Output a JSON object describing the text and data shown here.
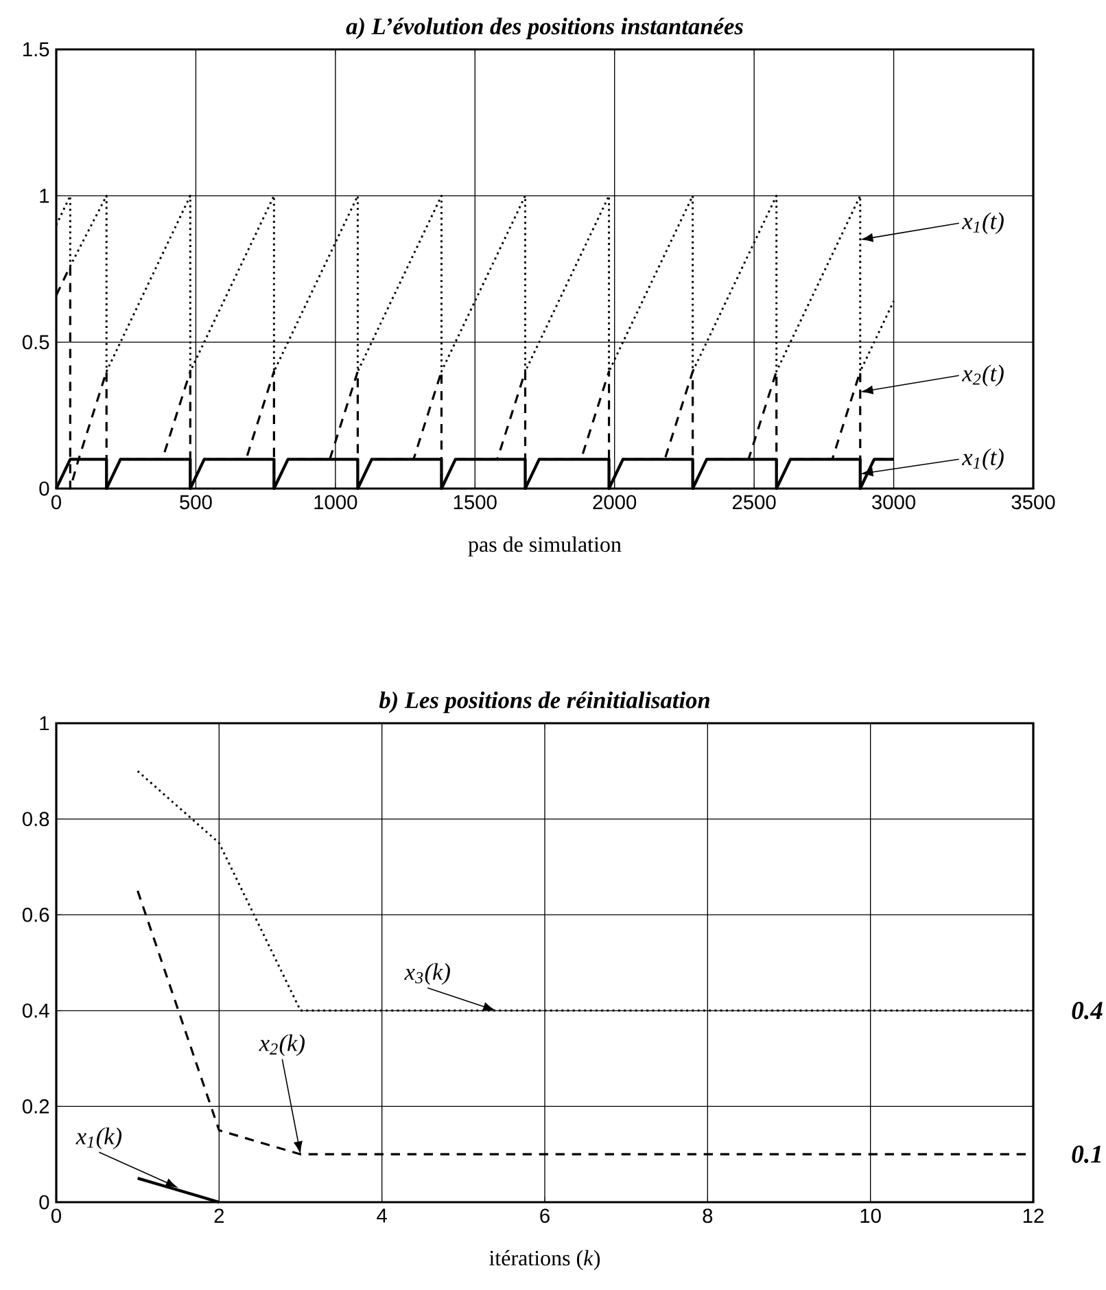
{
  "chart_data": [
    {
      "type": "line",
      "title": "a) L’évolution des positions instantanées",
      "xlabel": "pas de simulation",
      "xlim": [
        0,
        3500
      ],
      "ylim": [
        0,
        1.5
      ],
      "xticks": [
        0,
        500,
        1000,
        1500,
        2000,
        2500,
        3000,
        3500
      ],
      "yticks": [
        0,
        0.5,
        1,
        1.5
      ],
      "grid": true,
      "marker": "none",
      "series": [
        {
          "type": "line",
          "color": "#000000",
          "line_style": "dotted",
          "x": [
            0,
            50,
            50,
            180,
            180,
            480,
            480,
            780,
            780,
            1080,
            1080,
            1380,
            1380,
            1680,
            1680,
            1980,
            1980,
            2280,
            2280,
            2580,
            2580,
            2880,
            2880,
            3000
          ],
          "values": [
            0.9,
            1,
            0.76,
            1,
            0.4,
            1,
            0.4,
            1,
            0.4,
            1,
            0.4,
            1,
            0.4,
            1,
            0.4,
            1,
            0.4,
            1,
            0.4,
            1,
            0.4,
            1,
            0.4,
            0.64
          ]
        },
        {
          "type": "line",
          "color": "#000000",
          "line_style": "dashed",
          "x": [
            0,
            50,
            50,
            80,
            180,
            180,
            230,
            380,
            480,
            480,
            530,
            680,
            780,
            780,
            830,
            980,
            1080,
            1080,
            1130,
            1280,
            1380,
            1380,
            1430,
            1580,
            1680,
            1680,
            1730,
            1880,
            1980,
            1980,
            2030,
            2180,
            2280,
            2280,
            2330,
            2480,
            2580,
            2580,
            2630,
            2780,
            2880,
            2880,
            2930,
            3000
          ],
          "values": [
            0.66,
            0.76,
            0,
            0.1,
            0.4,
            0,
            0.1,
            0.1,
            0.4,
            0,
            0.1,
            0.1,
            0.4,
            0,
            0.1,
            0.1,
            0.4,
            0,
            0.1,
            0.1,
            0.4,
            0,
            0.1,
            0.1,
            0.4,
            0,
            0.1,
            0.1,
            0.4,
            0,
            0.1,
            0.1,
            0.4,
            0,
            0.1,
            0.1,
            0.4,
            0,
            0.1,
            0.1,
            0.4,
            0,
            0.1,
            0.1
          ]
        },
        {
          "type": "line",
          "color": "#000000",
          "line_style": "solid",
          "x": [
            0,
            50,
            180,
            180,
            230,
            480,
            480,
            530,
            780,
            780,
            830,
            1080,
            1080,
            1130,
            1380,
            1380,
            1430,
            1680,
            1680,
            1730,
            1980,
            1980,
            2030,
            2280,
            2280,
            2330,
            2580,
            2580,
            2630,
            2880,
            2880,
            2930,
            3000
          ],
          "values": [
            0,
            0.1,
            0.1,
            0,
            0.1,
            0.1,
            0,
            0.1,
            0.1,
            0,
            0.1,
            0.1,
            0,
            0.1,
            0.1,
            0,
            0.1,
            0.1,
            0,
            0.1,
            0.1,
            0,
            0.1,
            0.1,
            0,
            0.1,
            0.1,
            0,
            0.1,
            0.1,
            0,
            0.1,
            0.1
          ]
        }
      ],
      "annotations": [
        {
          "text": "x$_{1}$(t)",
          "x": 2880,
          "y": 0.85
        },
        {
          "text": "x$_{2}$(t)",
          "x": 2880,
          "y": 0.33
        },
        {
          "text": "x$_{1}$(t)",
          "x": 2880,
          "y": 0.05
        }
      ]
    },
    {
      "type": "line",
      "title": "b) Les positions de réinitialisation",
      "xlabel": "itérations (*k*)",
      "xlim": [
        0,
        12
      ],
      "ylim": [
        0,
        1
      ],
      "xticks": [
        0,
        2,
        4,
        6,
        8,
        10,
        12
      ],
      "yticks": [
        0,
        0.2,
        0.4,
        0.6,
        0.8,
        1
      ],
      "grid": true,
      "marker": "none",
      "series": [
        {
          "type": "line",
          "color": "#000000",
          "line_style": "dotted",
          "x": [
            1,
            2,
            3,
            4,
            5,
            6,
            7,
            8,
            9,
            10,
            11,
            12
          ],
          "values": [
            0.9,
            0.75,
            0.4,
            0.4,
            0.4,
            0.4,
            0.4,
            0.4,
            0.4,
            0.4,
            0.4,
            0.4
          ]
        },
        {
          "type": "line",
          "color": "#000000",
          "line_style": "dashed",
          "x": [
            1,
            2,
            3,
            4,
            5,
            6,
            7,
            8,
            9,
            10,
            11,
            12
          ],
          "values": [
            0.65,
            0.15,
            0.1,
            0.1,
            0.1,
            0.1,
            0.1,
            0.1,
            0.1,
            0.1,
            0.1,
            0.1
          ]
        },
        {
          "type": "line",
          "color": "#000000",
          "line_style": "solid",
          "x": [
            1,
            2
          ],
          "values": [
            0.05,
            0
          ]
        }
      ],
      "annotations": [
        {
          "text": "x$_{3}$(k)",
          "x": 5.4,
          "y": 0.4
        },
        {
          "text": "x$_{2}$(k)",
          "x": 3,
          "y": 0.1
        },
        {
          "text": "x$_{1}$(k)",
          "x": 1.5,
          "y": 0.03
        },
        {
          "text": "0.4",
          "x": 12,
          "y": 0.4
        },
        {
          "text": "0.1",
          "x": 12,
          "y": 0.1
        }
      ]
    }
  ]
}
